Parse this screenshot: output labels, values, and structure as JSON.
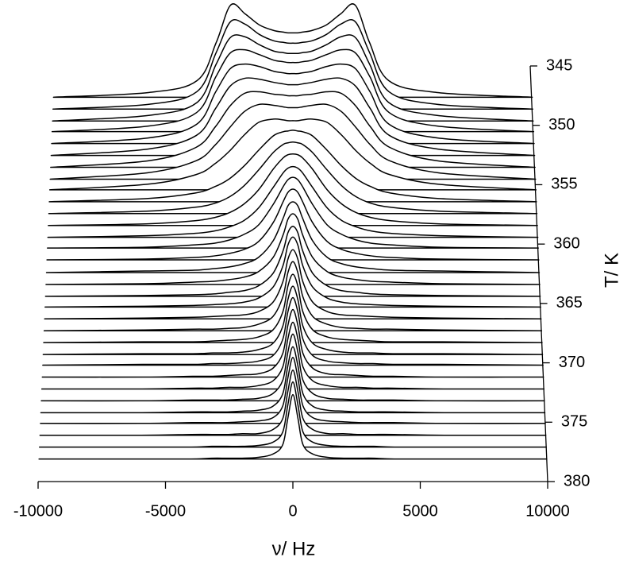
{
  "chart_data": {
    "type": "waterfall",
    "x_label": "ν/ Hz",
    "z_label": "T/ K",
    "xlim": [
      -10000,
      10000
    ],
    "xticks": [
      -10000,
      -5000,
      0,
      5000,
      10000
    ],
    "zlim": [
      345,
      380
    ],
    "zticks": [
      345,
      350,
      355,
      360,
      365,
      370,
      375,
      380
    ],
    "color": "#000000",
    "x": [
      -10000,
      -6000,
      -4000,
      -3200,
      -2600,
      -2000,
      -1400,
      -800,
      -400,
      -200,
      0,
      200,
      400,
      800,
      1400,
      2000,
      2600,
      3200,
      4000,
      6000,
      10000
    ],
    "series": [
      {
        "z": 347.7,
        "values": [
          1,
          7,
          22,
          70,
          117,
          106,
          92,
          85,
          83,
          82,
          82,
          82,
          83,
          85,
          92,
          106,
          117,
          70,
          22,
          7,
          1
        ]
      },
      {
        "z": 348.7,
        "values": [
          1,
          7,
          23,
          72,
          111,
          108,
          95,
          87,
          85,
          84,
          84,
          84,
          85,
          87,
          95,
          108,
          111,
          72,
          23,
          7,
          1
        ]
      },
      {
        "z": 349.7,
        "values": [
          1,
          8,
          24,
          72,
          106,
          107,
          97,
          89,
          87,
          86,
          86,
          86,
          87,
          89,
          97,
          107,
          106,
          72,
          24,
          8,
          1
        ]
      },
      {
        "z": 350.6,
        "values": [
          1,
          8,
          25,
          70,
          100,
          104,
          98,
          91,
          89,
          88,
          88,
          88,
          89,
          91,
          98,
          104,
          100,
          70,
          25,
          8,
          1
        ]
      },
      {
        "z": 351.6,
        "values": [
          1,
          8,
          25,
          66,
          95,
          101,
          98,
          92,
          90,
          89,
          89,
          89,
          90,
          92,
          98,
          101,
          95,
          66,
          25,
          8,
          1
        ]
      },
      {
        "z": 352.6,
        "values": [
          1,
          9,
          26,
          60,
          88,
          98,
          97,
          93,
          91,
          90,
          90,
          90,
          91,
          93,
          97,
          98,
          88,
          60,
          26,
          9,
          1
        ]
      },
      {
        "z": 353.6,
        "values": [
          1,
          9,
          26,
          52,
          78,
          94,
          96,
          93,
          92,
          91,
          91,
          91,
          92,
          93,
          96,
          94,
          78,
          52,
          26,
          9,
          1
        ]
      },
      {
        "z": 354.6,
        "values": [
          1,
          9,
          24,
          44,
          66,
          86,
          95,
          94,
          92,
          91,
          91,
          91,
          92,
          94,
          95,
          86,
          66,
          44,
          24,
          9,
          1
        ]
      },
      {
        "z": 355.5,
        "values": [
          1,
          8,
          20,
          34,
          50,
          70,
          86,
          90,
          89,
          88,
          88,
          88,
          89,
          90,
          86,
          70,
          50,
          34,
          20,
          8,
          1
        ]
      },
      {
        "z": 356.5,
        "values": [
          1,
          5,
          12,
          20,
          30,
          46,
          66,
          84,
          89,
          90,
          91,
          90,
          89,
          84,
          66,
          46,
          30,
          20,
          12,
          5,
          1
        ]
      },
      {
        "z": 357.5,
        "values": [
          1,
          4,
          9,
          14,
          22,
          36,
          56,
          78,
          88,
          90,
          91,
          90,
          88,
          78,
          56,
          36,
          22,
          14,
          9,
          4,
          1
        ]
      },
      {
        "z": 358.5,
        "values": [
          1,
          3,
          7,
          11,
          17,
          28,
          46,
          72,
          86,
          90,
          91,
          90,
          86,
          72,
          46,
          28,
          17,
          11,
          7,
          3,
          1
        ]
      },
      {
        "z": 359.5,
        "values": [
          1,
          3,
          6,
          9,
          14,
          22,
          38,
          64,
          82,
          88,
          90,
          88,
          82,
          64,
          38,
          22,
          14,
          9,
          6,
          3,
          1
        ]
      },
      {
        "z": 360.4,
        "values": [
          1,
          2,
          5,
          7,
          11,
          18,
          30,
          56,
          78,
          87,
          90,
          87,
          78,
          56,
          30,
          18,
          11,
          7,
          5,
          2,
          1
        ]
      },
      {
        "z": 361.4,
        "values": [
          1,
          2,
          4,
          6,
          9,
          14,
          24,
          48,
          74,
          86,
          90,
          86,
          74,
          48,
          24,
          14,
          9,
          6,
          4,
          2,
          1
        ]
      },
      {
        "z": 362.4,
        "values": [
          0,
          2,
          3,
          5,
          7,
          11,
          19,
          40,
          68,
          84,
          89,
          84,
          68,
          40,
          19,
          11,
          7,
          5,
          3,
          2,
          0
        ]
      },
      {
        "z": 363.4,
        "values": [
          0,
          1,
          3,
          4,
          6,
          9,
          16,
          34,
          62,
          82,
          89,
          82,
          62,
          34,
          16,
          9,
          6,
          4,
          3,
          1,
          0
        ]
      },
      {
        "z": 364.4,
        "values": [
          0,
          1,
          2,
          3,
          5,
          7,
          13,
          29,
          57,
          80,
          88,
          80,
          57,
          29,
          13,
          7,
          5,
          3,
          2,
          1,
          0
        ]
      },
      {
        "z": 365.3,
        "values": [
          0,
          1,
          2,
          3,
          4,
          6,
          11,
          25,
          52,
          78,
          88,
          78,
          52,
          25,
          11,
          6,
          4,
          3,
          2,
          1,
          0
        ]
      },
      {
        "z": 366.3,
        "values": [
          0,
          1,
          2,
          3,
          4,
          5,
          9,
          21,
          47,
          75,
          87,
          75,
          47,
          21,
          9,
          5,
          4,
          3,
          2,
          1,
          0
        ]
      },
      {
        "z": 367.3,
        "values": [
          0,
          1,
          2,
          2,
          3,
          4,
          8,
          18,
          43,
          73,
          87,
          73,
          43,
          18,
          8,
          4,
          3,
          2,
          2,
          1,
          0
        ]
      },
      {
        "z": 368.3,
        "values": [
          0,
          1,
          1,
          2,
          3,
          4,
          7,
          16,
          39,
          71,
          86,
          71,
          39,
          16,
          7,
          4,
          3,
          2,
          1,
          1,
          0
        ]
      },
      {
        "z": 369.3,
        "values": [
          0,
          1,
          1,
          2,
          2,
          3,
          6,
          14,
          36,
          69,
          86,
          69,
          36,
          14,
          6,
          3,
          2,
          2,
          1,
          1,
          0
        ]
      },
      {
        "z": 370.2,
        "values": [
          0,
          1,
          1,
          2,
          2,
          3,
          5,
          12,
          33,
          67,
          85,
          67,
          33,
          12,
          5,
          3,
          2,
          2,
          1,
          1,
          0
        ]
      },
      {
        "z": 371.2,
        "values": [
          0,
          0,
          1,
          1,
          2,
          3,
          4,
          11,
          30,
          65,
          85,
          65,
          30,
          11,
          4,
          3,
          2,
          1,
          1,
          0,
          0
        ]
      },
      {
        "z": 372.2,
        "values": [
          0,
          0,
          1,
          1,
          2,
          2,
          4,
          10,
          28,
          63,
          84,
          63,
          28,
          10,
          4,
          2,
          2,
          1,
          1,
          0,
          0
        ]
      },
      {
        "z": 373.2,
        "values": [
          0,
          0,
          1,
          1,
          1,
          2,
          3,
          9,
          26,
          61,
          84,
          61,
          26,
          9,
          3,
          2,
          1,
          1,
          1,
          0,
          0
        ]
      },
      {
        "z": 374.2,
        "values": [
          0,
          0,
          1,
          1,
          1,
          2,
          3,
          8,
          24,
          59,
          83,
          59,
          24,
          8,
          3,
          2,
          1,
          1,
          1,
          0,
          0
        ]
      },
      {
        "z": 375.1,
        "values": [
          0,
          0,
          1,
          1,
          1,
          2,
          3,
          7,
          22,
          57,
          83,
          57,
          22,
          7,
          3,
          2,
          1,
          1,
          1,
          0,
          0
        ]
      },
      {
        "z": 376.1,
        "values": [
          0,
          0,
          1,
          1,
          1,
          2,
          2,
          7,
          21,
          55,
          82,
          55,
          21,
          7,
          2,
          2,
          1,
          1,
          1,
          0,
          0
        ]
      },
      {
        "z": 377.1,
        "values": [
          0,
          0,
          0,
          1,
          1,
          1,
          2,
          6,
          19,
          53,
          82,
          53,
          19,
          6,
          2,
          1,
          1,
          1,
          0,
          0,
          0
        ]
      },
      {
        "z": 378.1,
        "values": [
          0,
          0,
          0,
          1,
          1,
          1,
          2,
          6,
          18,
          51,
          81,
          51,
          18,
          6,
          2,
          1,
          1,
          1,
          0,
          0,
          0
        ]
      }
    ]
  }
}
